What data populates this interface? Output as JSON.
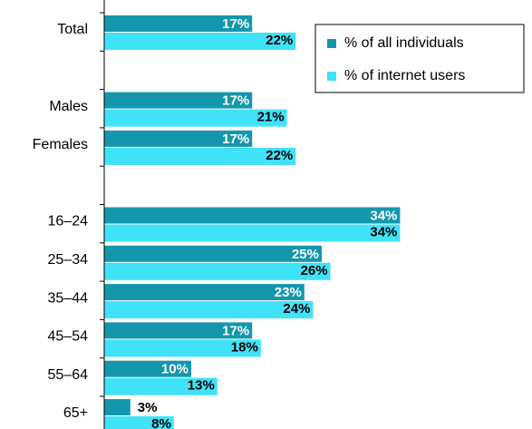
{
  "chart_data": {
    "type": "hbar",
    "categories": [
      "Total",
      null,
      "Males",
      "Females",
      null,
      "16–24",
      "25–34",
      "35–44",
      "45–54",
      "55–64",
      "65+"
    ],
    "series": [
      {
        "name": "% of all individuals",
        "color": "#1497ad",
        "values": [
          17,
          null,
          17,
          17,
          null,
          34,
          25,
          23,
          17,
          10,
          3
        ],
        "value_labels": [
          "17%",
          null,
          "17%",
          "17%",
          null,
          "34%",
          "25%",
          "23%",
          "17%",
          "10%",
          "3%"
        ]
      },
      {
        "name": "% of internet users",
        "color": "#40e2f8",
        "values": [
          22,
          null,
          21,
          22,
          null,
          34,
          26,
          24,
          18,
          13,
          8
        ],
        "value_labels": [
          "22%",
          null,
          "21%",
          "22%",
          null,
          "34%",
          "26%",
          "24%",
          "18%",
          "13%",
          "8%"
        ]
      }
    ],
    "xlim": [
      0,
      35
    ],
    "legend": "top-right"
  }
}
